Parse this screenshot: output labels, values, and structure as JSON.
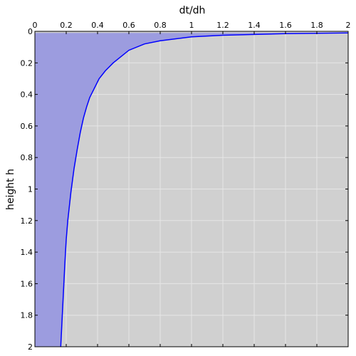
{
  "chart_data": {
    "type": "area",
    "xlabel": "dt/dh",
    "ylabel": "height h",
    "xlim": [
      0,
      2
    ],
    "ylim": [
      0,
      2
    ],
    "y_inverted": true,
    "x_axis_position": "top",
    "grid": true,
    "x_ticks": [
      "0",
      "0.2",
      "0.4",
      "0.6",
      "0.8",
      "1",
      "1.2",
      "1.4",
      "1.6",
      "1.8",
      "2"
    ],
    "y_ticks": [
      "0",
      "0.2",
      "0.4",
      "0.6",
      "0.8",
      "1",
      "1.2",
      "1.4",
      "1.6",
      "1.8",
      "2"
    ],
    "series": [
      {
        "x": [
          2.0,
          1.6,
          1.2,
          1.0,
          0.8,
          0.7,
          0.6,
          0.5,
          0.45,
          0.41,
          0.37,
          0.35,
          0.33,
          0.31,
          0.29,
          0.27,
          0.25,
          0.23,
          0.21,
          0.2,
          0.19,
          0.18,
          0.17,
          0.165
        ],
        "y": [
          0.01,
          0.015,
          0.025,
          0.035,
          0.06,
          0.08,
          0.12,
          0.2,
          0.25,
          0.3,
          0.38,
          0.42,
          0.48,
          0.55,
          0.64,
          0.75,
          0.87,
          1.02,
          1.2,
          1.32,
          1.5,
          1.7,
          1.9,
          2.0
        ]
      }
    ],
    "colors": {
      "line": "#0000ff",
      "fill": "#9c9cdf",
      "background": "#d0d0d0",
      "grid": "#e6e6e6"
    }
  }
}
